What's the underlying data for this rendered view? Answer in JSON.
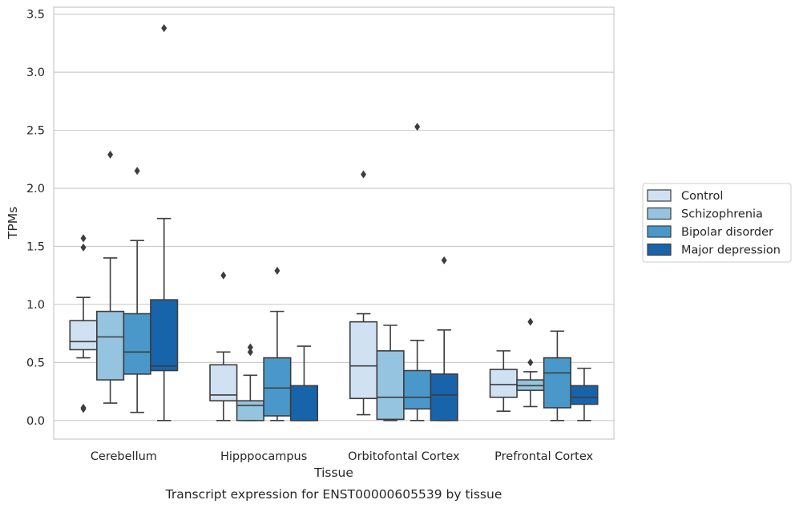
{
  "chart_data": {
    "type": "box",
    "title": "",
    "caption": "Transcript expression for ENST00000605539 by tissue",
    "xlabel": "Tissue",
    "ylabel": "TPMs",
    "ylim": [
      -0.16,
      3.56
    ],
    "yticks": [
      0.0,
      0.5,
      1.0,
      1.5,
      2.0,
      2.5,
      3.0,
      3.5
    ],
    "ytick_labels": [
      "0.0",
      "0.5",
      "1.0",
      "1.5",
      "2.0",
      "2.5",
      "3.0",
      "3.5"
    ],
    "grid": "horizontal",
    "legend_position": "right",
    "categories": [
      "Cerebellum",
      "Hipppocampus",
      "Orbitofontal Cortex",
      "Prefrontal Cortex"
    ],
    "series": [
      {
        "name": "Control",
        "color": "#d0e1f2",
        "boxes": [
          {
            "whislo": 0.54,
            "q1": 0.61,
            "med": 0.68,
            "q3": 0.86,
            "whishi": 1.06,
            "fliers": [
              1.49,
              1.57,
              0.1,
              0.11
            ]
          },
          {
            "whislo": 0.0,
            "q1": 0.17,
            "med": 0.22,
            "q3": 0.48,
            "whishi": 0.59,
            "fliers": [
              1.25
            ]
          },
          {
            "whislo": 0.05,
            "q1": 0.19,
            "med": 0.47,
            "q3": 0.85,
            "whishi": 0.92,
            "fliers": [
              2.12
            ]
          },
          {
            "whislo": 0.08,
            "q1": 0.2,
            "med": 0.31,
            "q3": 0.44,
            "whishi": 0.6,
            "fliers": []
          }
        ]
      },
      {
        "name": "Schizophrenia",
        "color": "#94c4df",
        "boxes": [
          {
            "whislo": 0.15,
            "q1": 0.35,
            "med": 0.72,
            "q3": 0.94,
            "whishi": 1.4,
            "fliers": [
              2.29
            ]
          },
          {
            "whislo": 0.0,
            "q1": 0.0,
            "med": 0.13,
            "q3": 0.17,
            "whishi": 0.39,
            "fliers": [
              0.59,
              0.63
            ]
          },
          {
            "whislo": 0.0,
            "q1": 0.01,
            "med": 0.2,
            "q3": 0.6,
            "whishi": 0.82,
            "fliers": []
          },
          {
            "whislo": 0.12,
            "q1": 0.26,
            "med": 0.3,
            "q3": 0.35,
            "whishi": 0.42,
            "fliers": [
              0.5,
              0.85
            ]
          }
        ]
      },
      {
        "name": "Bipolar disorder",
        "color": "#4a98c9",
        "boxes": [
          {
            "whislo": 0.07,
            "q1": 0.4,
            "med": 0.59,
            "q3": 0.92,
            "whishi": 1.55,
            "fliers": [
              2.15
            ]
          },
          {
            "whislo": 0.0,
            "q1": 0.04,
            "med": 0.28,
            "q3": 0.54,
            "whishi": 0.94,
            "fliers": [
              1.29
            ]
          },
          {
            "whislo": 0.0,
            "q1": 0.1,
            "med": 0.2,
            "q3": 0.43,
            "whishi": 0.69,
            "fliers": [
              2.53
            ]
          },
          {
            "whislo": 0.0,
            "q1": 0.11,
            "med": 0.41,
            "q3": 0.54,
            "whishi": 0.77,
            "fliers": []
          }
        ]
      },
      {
        "name": "Major depression",
        "color": "#1764ab",
        "boxes": [
          {
            "whislo": 0.0,
            "q1": 0.43,
            "med": 0.47,
            "q3": 1.04,
            "whishi": 1.74,
            "fliers": [
              3.38
            ]
          },
          {
            "whislo": 0.0,
            "q1": 0.0,
            "med": 0.0,
            "q3": 0.3,
            "whishi": 0.64,
            "fliers": []
          },
          {
            "whislo": 0.0,
            "q1": 0.0,
            "med": 0.22,
            "q3": 0.4,
            "whishi": 0.78,
            "fliers": [
              1.38
            ]
          },
          {
            "whislo": 0.0,
            "q1": 0.14,
            "med": 0.2,
            "q3": 0.3,
            "whishi": 0.45,
            "fliers": []
          }
        ]
      }
    ]
  }
}
